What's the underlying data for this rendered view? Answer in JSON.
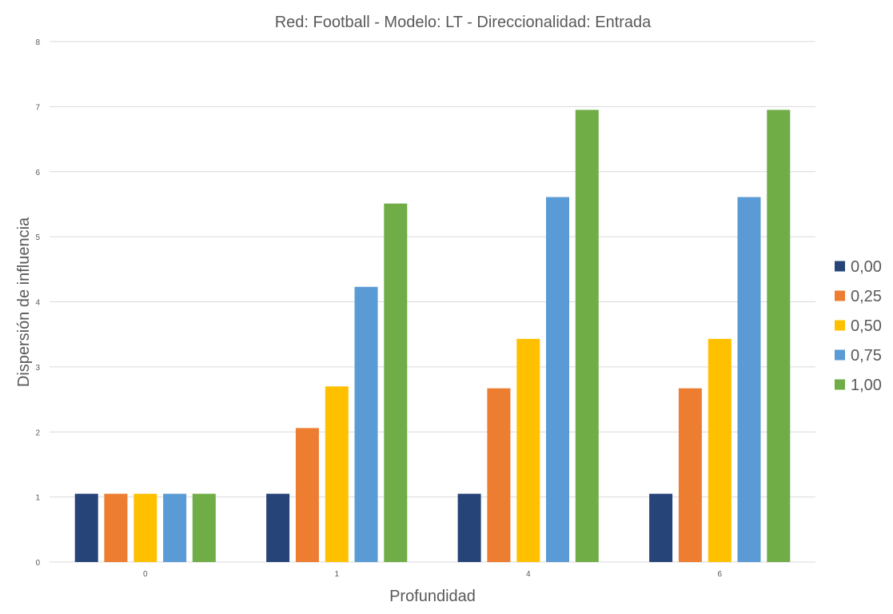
{
  "chart_data": {
    "type": "bar",
    "title": "Red: Football - Modelo: LT - Direccionalidad: Entrada",
    "xlabel": "Profundidad",
    "ylabel": "Dispersión de influencia",
    "categories": [
      "0",
      "1",
      "4",
      "6"
    ],
    "ylim": [
      0,
      8
    ],
    "yticks": [
      "0",
      "1",
      "2",
      "3",
      "4",
      "5",
      "6",
      "7",
      "8"
    ],
    "grid": true,
    "legend_position": "right",
    "series": [
      {
        "name": "0,00",
        "color": "#264478",
        "values": [
          1.05,
          1.05,
          1.05,
          1.05
        ]
      },
      {
        "name": "0,25",
        "color": "#ED7D31",
        "values": [
          1.05,
          2.06,
          2.67,
          2.67
        ]
      },
      {
        "name": "0,50",
        "color": "#FFC000",
        "values": [
          1.05,
          2.7,
          3.43,
          3.43
        ]
      },
      {
        "name": "0,75",
        "color": "#5B9BD5",
        "values": [
          1.05,
          4.23,
          5.61,
          5.61
        ]
      },
      {
        "name": "1,00",
        "color": "#70AD47",
        "values": [
          1.05,
          5.51,
          6.95,
          6.95
        ]
      }
    ]
  }
}
